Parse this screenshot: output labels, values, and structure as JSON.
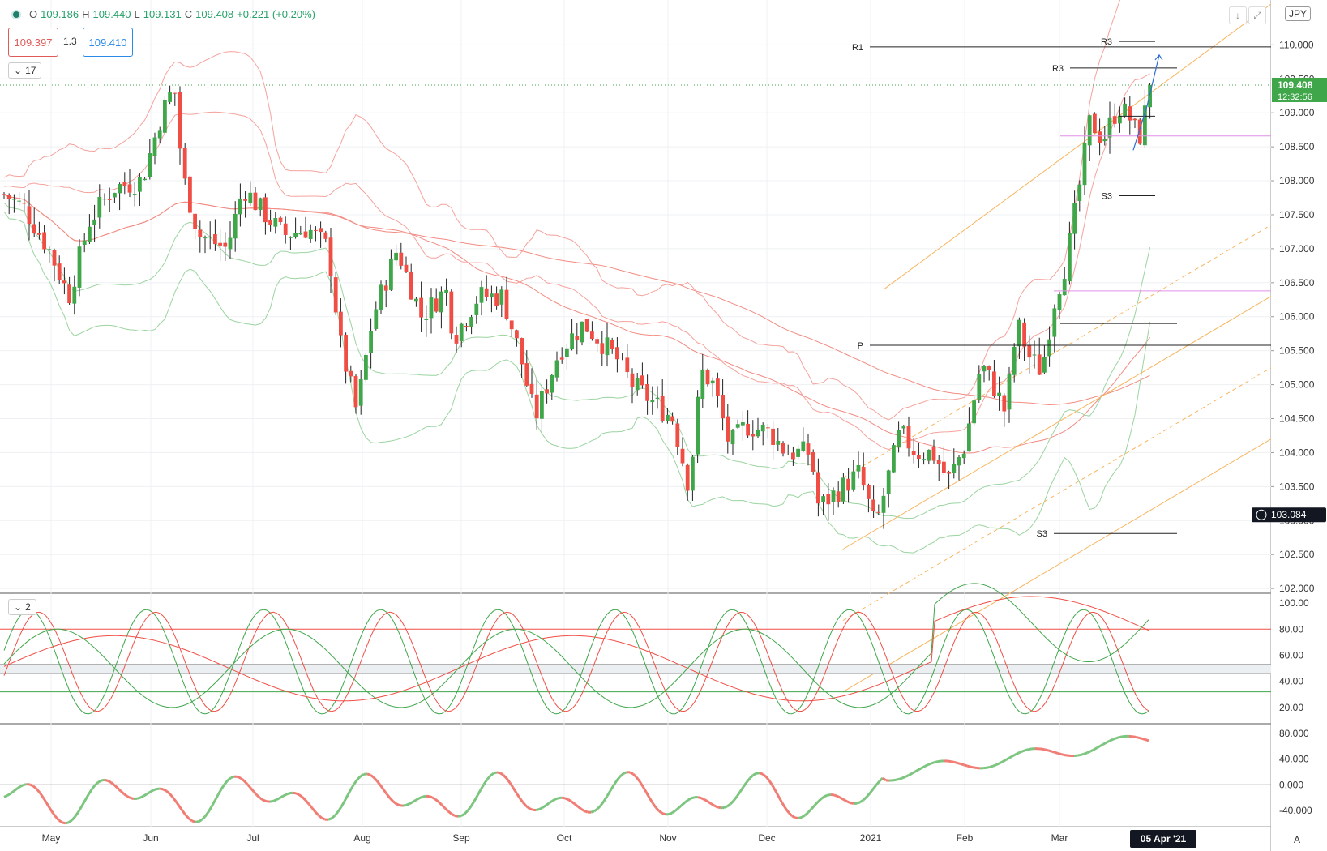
{
  "header": {
    "ohlc": [
      {
        "key": "O",
        "value": "109.186"
      },
      {
        "key": "H",
        "value": "109.440"
      },
      {
        "key": "L",
        "value": "109.131"
      },
      {
        "key": "C",
        "value": "109.408"
      }
    ],
    "change": "+0.221 (+0.20%)",
    "sell_price": "109.397",
    "spread": "1.3",
    "buy_price": "109.410",
    "indicator_count": "17",
    "currency": "JPY"
  },
  "colors": {
    "up": "#3fa64a",
    "down": "#f04e45",
    "ma": "#f28b82",
    "bb_up": "#f5a29d",
    "bb_low": "#9bd4a0",
    "channel": "#f8b55e",
    "pivot_magenta": "#e090e6",
    "price_label": "#3fa64a"
  },
  "price_label": {
    "value": "109.408",
    "countdown": "12:32:56"
  },
  "crosshair_label": "103.084",
  "osc_pane": {
    "collapse_count": "2",
    "ticks": [
      "100.00",
      "80.00",
      "60.00",
      "40.00",
      "20.00"
    ]
  },
  "mom_pane": {
    "ticks": [
      "80.000",
      "40.000",
      "0.000",
      "-40.000"
    ]
  },
  "date_badge": "05 Apr '21",
  "scale_mode": "A",
  "chart_data": {
    "type": "candlestick",
    "y_ticks": [
      110.0,
      109.5,
      109.0,
      108.5,
      108.0,
      107.5,
      107.0,
      106.5,
      106.0,
      105.5,
      105.0,
      104.5,
      104.0,
      103.5,
      103.0,
      102.5,
      102.0
    ],
    "ylim": [
      101.93,
      110.66
    ],
    "x_labels": [
      "May",
      "Jun",
      "Jul",
      "Aug",
      "Sep",
      "Oct",
      "Nov",
      "Dec",
      "2021",
      "Feb",
      "Mar"
    ],
    "last_close": 109.408,
    "pivots": [
      {
        "label": "R1",
        "value": 109.97
      },
      {
        "label": "R3",
        "value": 109.66
      },
      {
        "label": "R3",
        "value": 110.05
      },
      {
        "label": "P",
        "value": 105.58
      },
      {
        "label": "S3",
        "value": 107.78
      },
      {
        "label": "S3",
        "value": 102.81
      },
      {
        "label": "",
        "value": 108.66
      },
      {
        "label": "",
        "value": 106.38
      },
      {
        "label": "",
        "value": 105.9
      },
      {
        "label": "",
        "value": 108.95
      }
    ]
  }
}
